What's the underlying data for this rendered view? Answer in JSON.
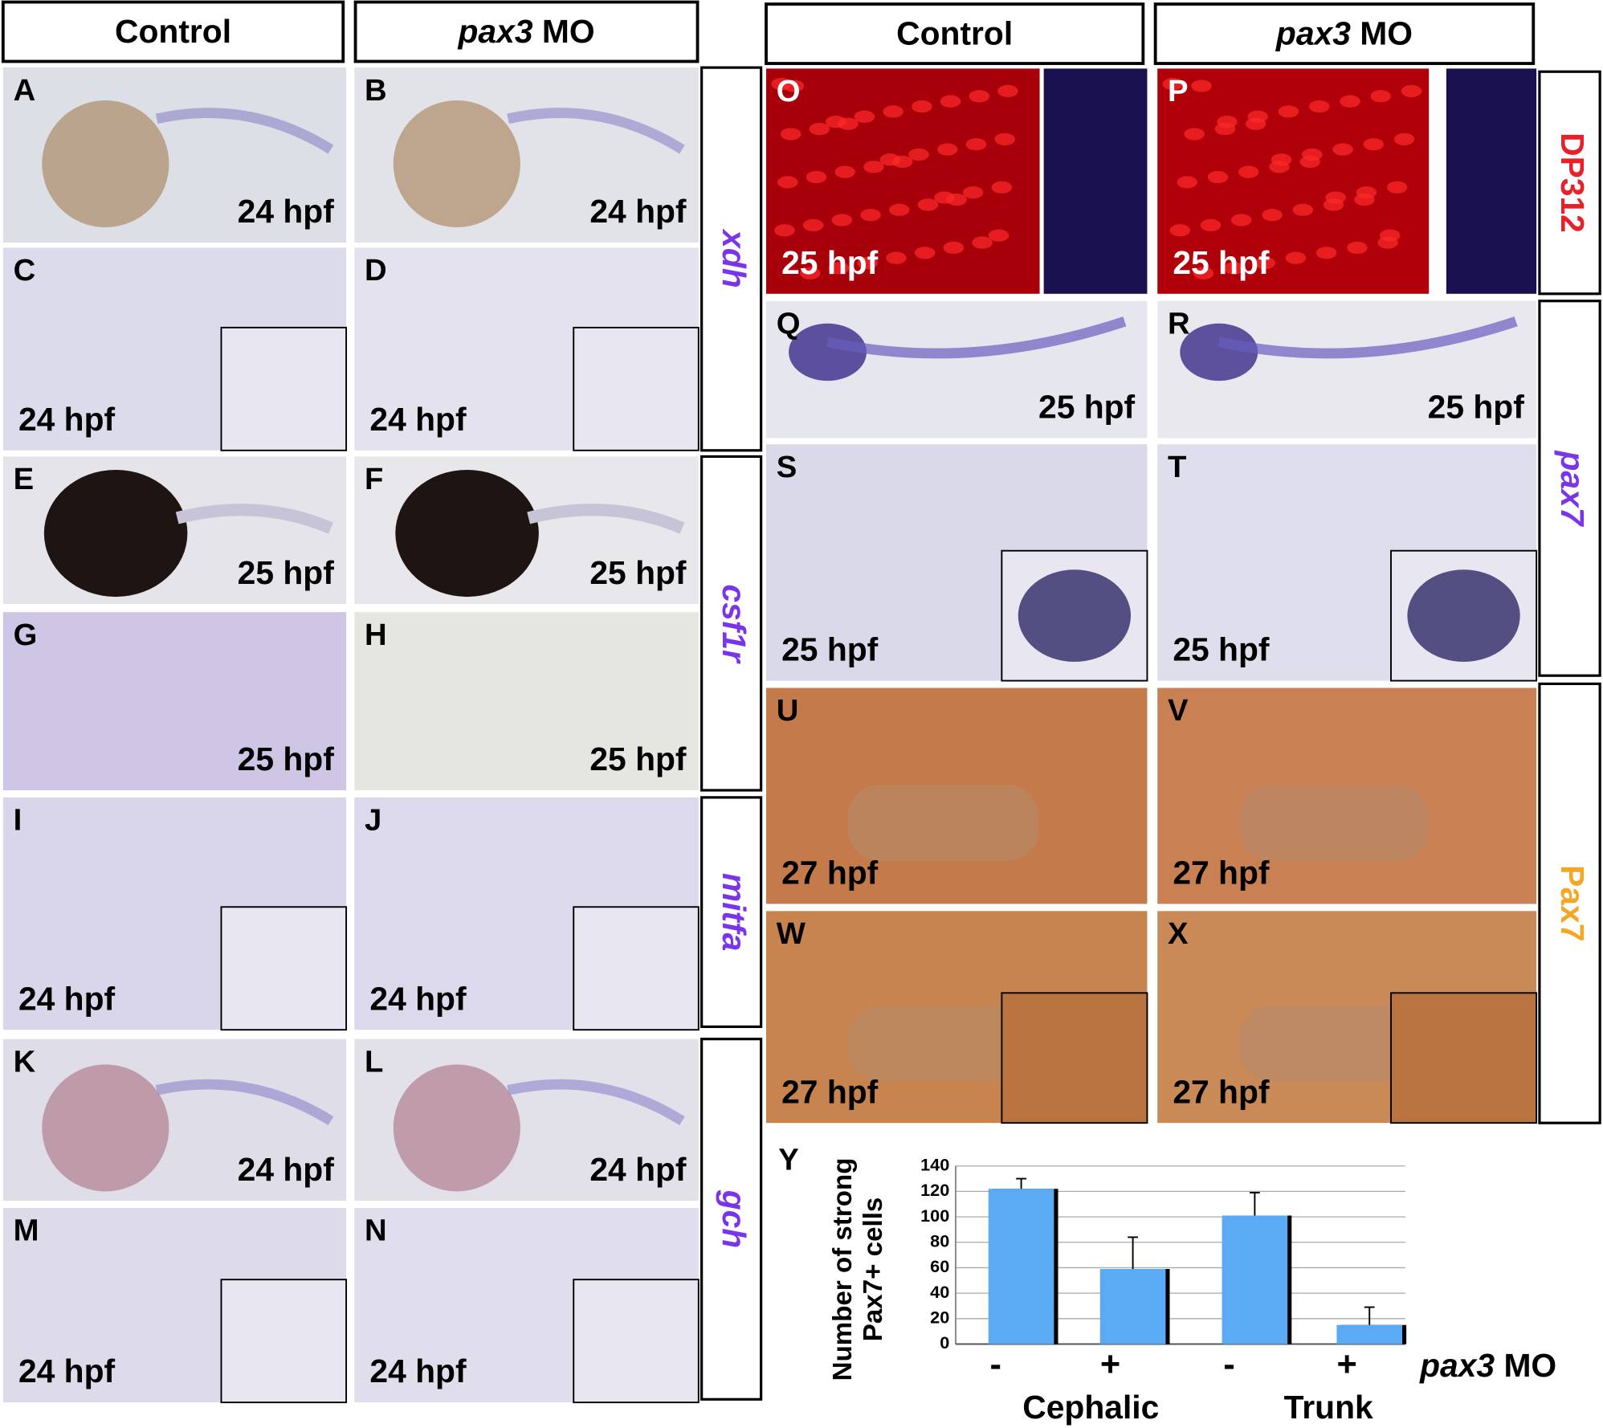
{
  "headers": {
    "control": "Control",
    "treated": {
      "gene": "pax3",
      "suffix": "MO"
    }
  },
  "panels": [
    {
      "letter": "A",
      "time": "24 hpf"
    },
    {
      "letter": "B",
      "time": "24 hpf"
    },
    {
      "letter": "C",
      "time": "24 hpf"
    },
    {
      "letter": "D",
      "time": "24 hpf"
    },
    {
      "letter": "E",
      "time": "25 hpf"
    },
    {
      "letter": "F",
      "time": "25 hpf"
    },
    {
      "letter": "G",
      "time": "25 hpf"
    },
    {
      "letter": "H",
      "time": "25 hpf"
    },
    {
      "letter": "I",
      "time": "24 hpf"
    },
    {
      "letter": "J",
      "time": "24 hpf"
    },
    {
      "letter": "K",
      "time": "24 hpf"
    },
    {
      "letter": "L",
      "time": "24 hpf"
    },
    {
      "letter": "M",
      "time": "24 hpf"
    },
    {
      "letter": "N",
      "time": "24 hpf"
    },
    {
      "letter": "O",
      "time": "25 hpf"
    },
    {
      "letter": "P",
      "time": "25 hpf"
    },
    {
      "letter": "Q",
      "time": "25 hpf"
    },
    {
      "letter": "R",
      "time": "25 hpf"
    },
    {
      "letter": "S",
      "time": "25 hpf"
    },
    {
      "letter": "T",
      "time": "25 hpf"
    },
    {
      "letter": "U",
      "time": "27 hpf"
    },
    {
      "letter": "V",
      "time": "27 hpf"
    },
    {
      "letter": "W",
      "time": "27 hpf"
    },
    {
      "letter": "X",
      "time": "27 hpf"
    }
  ],
  "markers": [
    {
      "label": "xdh",
      "color": "#7a35e8"
    },
    {
      "label": "csf1r",
      "color": "#7a35e8"
    },
    {
      "label": "mitfa",
      "color": "#7a35e8"
    },
    {
      "label": "gch",
      "color": "#7a35e8"
    },
    {
      "label": "DP312",
      "color": "#e8202a"
    },
    {
      "label": "pax7",
      "color": "#7a35e8"
    },
    {
      "label": "Pax7",
      "color": "#f5a623"
    }
  ],
  "chart_data": {
    "type": "bar",
    "panel": "Y",
    "ylabel": [
      "Number of strong",
      "Pax7+ cells"
    ],
    "categories": [
      "-",
      "+",
      "-",
      "+"
    ],
    "groups": [
      "Cephalic",
      "Trunk"
    ],
    "treatment_label": {
      "gene": "pax3",
      "suffix": "MO"
    },
    "series": [
      {
        "color": "#5aabf4",
        "values": [
          122,
          59,
          101,
          15
        ],
        "errors": [
          8,
          25,
          18,
          14
        ]
      }
    ],
    "ylim": [
      0,
      140
    ],
    "yticks": [
      0,
      20,
      40,
      60,
      80,
      100,
      120,
      140
    ],
    "grid": true
  }
}
